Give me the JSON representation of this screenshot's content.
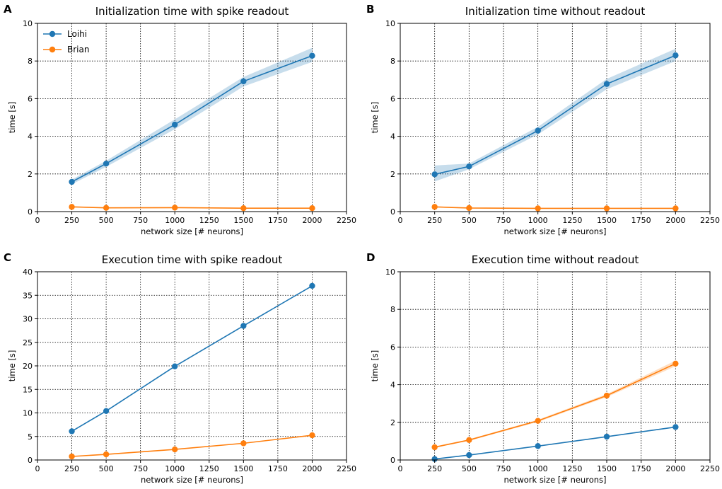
{
  "colors": {
    "loihi": "#1f77b4",
    "brian": "#ff7f0e",
    "band_loihi": "#1f77b4",
    "band_brian": "#ff7f0e",
    "grid": "#000000"
  },
  "chart_data": [
    {
      "type": "line",
      "panel": "A",
      "title": "Initialization time with spike readout",
      "xlabel": "network size [# neurons]",
      "ylabel": "time [s]",
      "xlim": [
        0,
        2250
      ],
      "ylim": [
        0,
        10
      ],
      "xticks": [
        0,
        250,
        500,
        750,
        1000,
        1250,
        1500,
        1750,
        2000,
        2250
      ],
      "yticks": [
        0,
        2,
        4,
        6,
        8,
        10
      ],
      "grid": true,
      "legend": {
        "placement": "top-left",
        "entries": [
          "Loihi",
          "Brian"
        ]
      },
      "x": [
        250,
        500,
        1000,
        1500,
        2000
      ],
      "series": [
        {
          "name": "Loihi",
          "color": "#1f77b4",
          "values": [
            1.58,
            2.55,
            4.62,
            6.92,
            8.28
          ],
          "band_lower": [
            1.45,
            2.38,
            4.38,
            6.65,
            7.95
          ],
          "band_upper": [
            1.7,
            2.7,
            4.9,
            7.15,
            8.7
          ]
        },
        {
          "name": "Brian",
          "color": "#ff7f0e",
          "values": [
            0.25,
            0.2,
            0.21,
            0.18,
            0.18
          ],
          "band_lower": [
            0.22,
            0.18,
            0.18,
            0.16,
            0.16
          ],
          "band_upper": [
            0.28,
            0.22,
            0.24,
            0.2,
            0.2
          ]
        }
      ]
    },
    {
      "type": "line",
      "panel": "B",
      "title": "Initialization time without readout",
      "xlabel": "network size [# neurons]",
      "ylabel": "time [s]",
      "xlim": [
        0,
        2250
      ],
      "ylim": [
        0,
        10
      ],
      "xticks": [
        0,
        250,
        500,
        750,
        1000,
        1250,
        1500,
        1750,
        2000,
        2250
      ],
      "yticks": [
        0,
        2,
        4,
        6,
        8,
        10
      ],
      "grid": true,
      "x": [
        250,
        500,
        1000,
        1500,
        2000
      ],
      "series": [
        {
          "name": "Loihi",
          "color": "#1f77b4",
          "values": [
            1.98,
            2.4,
            4.3,
            6.78,
            8.3
          ],
          "band_lower": [
            1.6,
            2.25,
            4.1,
            6.5,
            8.0
          ],
          "band_upper": [
            2.45,
            2.55,
            4.5,
            7.05,
            8.65
          ]
        },
        {
          "name": "Brian",
          "color": "#ff7f0e",
          "values": [
            0.25,
            0.19,
            0.17,
            0.17,
            0.17
          ],
          "band_lower": [
            0.22,
            0.17,
            0.15,
            0.15,
            0.15
          ],
          "band_upper": [
            0.28,
            0.21,
            0.19,
            0.19,
            0.19
          ]
        }
      ]
    },
    {
      "type": "line",
      "panel": "C",
      "title": "Execution time with spike readout",
      "xlabel": "network size [# neurons]",
      "ylabel": "time [s]",
      "xlim": [
        0,
        2250
      ],
      "ylim": [
        0,
        40
      ],
      "xticks": [
        0,
        250,
        500,
        750,
        1000,
        1250,
        1500,
        1750,
        2000,
        2250
      ],
      "yticks": [
        0,
        5,
        10,
        15,
        20,
        25,
        30,
        35,
        40
      ],
      "grid": true,
      "x": [
        250,
        500,
        1000,
        1500,
        2000
      ],
      "series": [
        {
          "name": "Loihi",
          "color": "#1f77b4",
          "values": [
            6.1,
            10.4,
            19.9,
            28.5,
            37.0
          ],
          "band_lower": [
            6.0,
            10.3,
            19.8,
            28.4,
            36.9
          ],
          "band_upper": [
            6.2,
            10.5,
            20.0,
            28.6,
            37.1
          ]
        },
        {
          "name": "Brian",
          "color": "#ff7f0e",
          "values": [
            0.75,
            1.2,
            2.25,
            3.55,
            5.25
          ],
          "band_lower": [
            0.7,
            1.15,
            2.2,
            3.5,
            5.15
          ],
          "band_upper": [
            0.8,
            1.25,
            2.3,
            3.6,
            5.35
          ]
        }
      ]
    },
    {
      "type": "line",
      "panel": "D",
      "title": "Execution time without readout",
      "xlabel": "network size [# neurons]",
      "ylabel": "time [s]",
      "xlim": [
        0,
        2250
      ],
      "ylim": [
        0,
        10
      ],
      "xticks": [
        0,
        250,
        500,
        750,
        1000,
        1250,
        1500,
        1750,
        2000,
        2250
      ],
      "yticks": [
        0,
        2,
        4,
        6,
        8,
        10
      ],
      "grid": true,
      "x": [
        250,
        500,
        1000,
        1500,
        2000
      ],
      "series": [
        {
          "name": "Loihi",
          "color": "#1f77b4",
          "values": [
            0.05,
            0.26,
            0.74,
            1.24,
            1.75
          ],
          "band_lower": [
            0.03,
            0.24,
            0.72,
            1.22,
            1.72
          ],
          "band_upper": [
            0.07,
            0.28,
            0.76,
            1.26,
            1.78
          ]
        },
        {
          "name": "Brian",
          "color": "#ff7f0e",
          "values": [
            0.68,
            1.06,
            2.08,
            3.42,
            5.12
          ],
          "band_lower": [
            0.64,
            1.02,
            2.02,
            3.34,
            4.98
          ],
          "band_upper": [
            0.72,
            1.1,
            2.14,
            3.5,
            5.28
          ]
        }
      ]
    }
  ]
}
